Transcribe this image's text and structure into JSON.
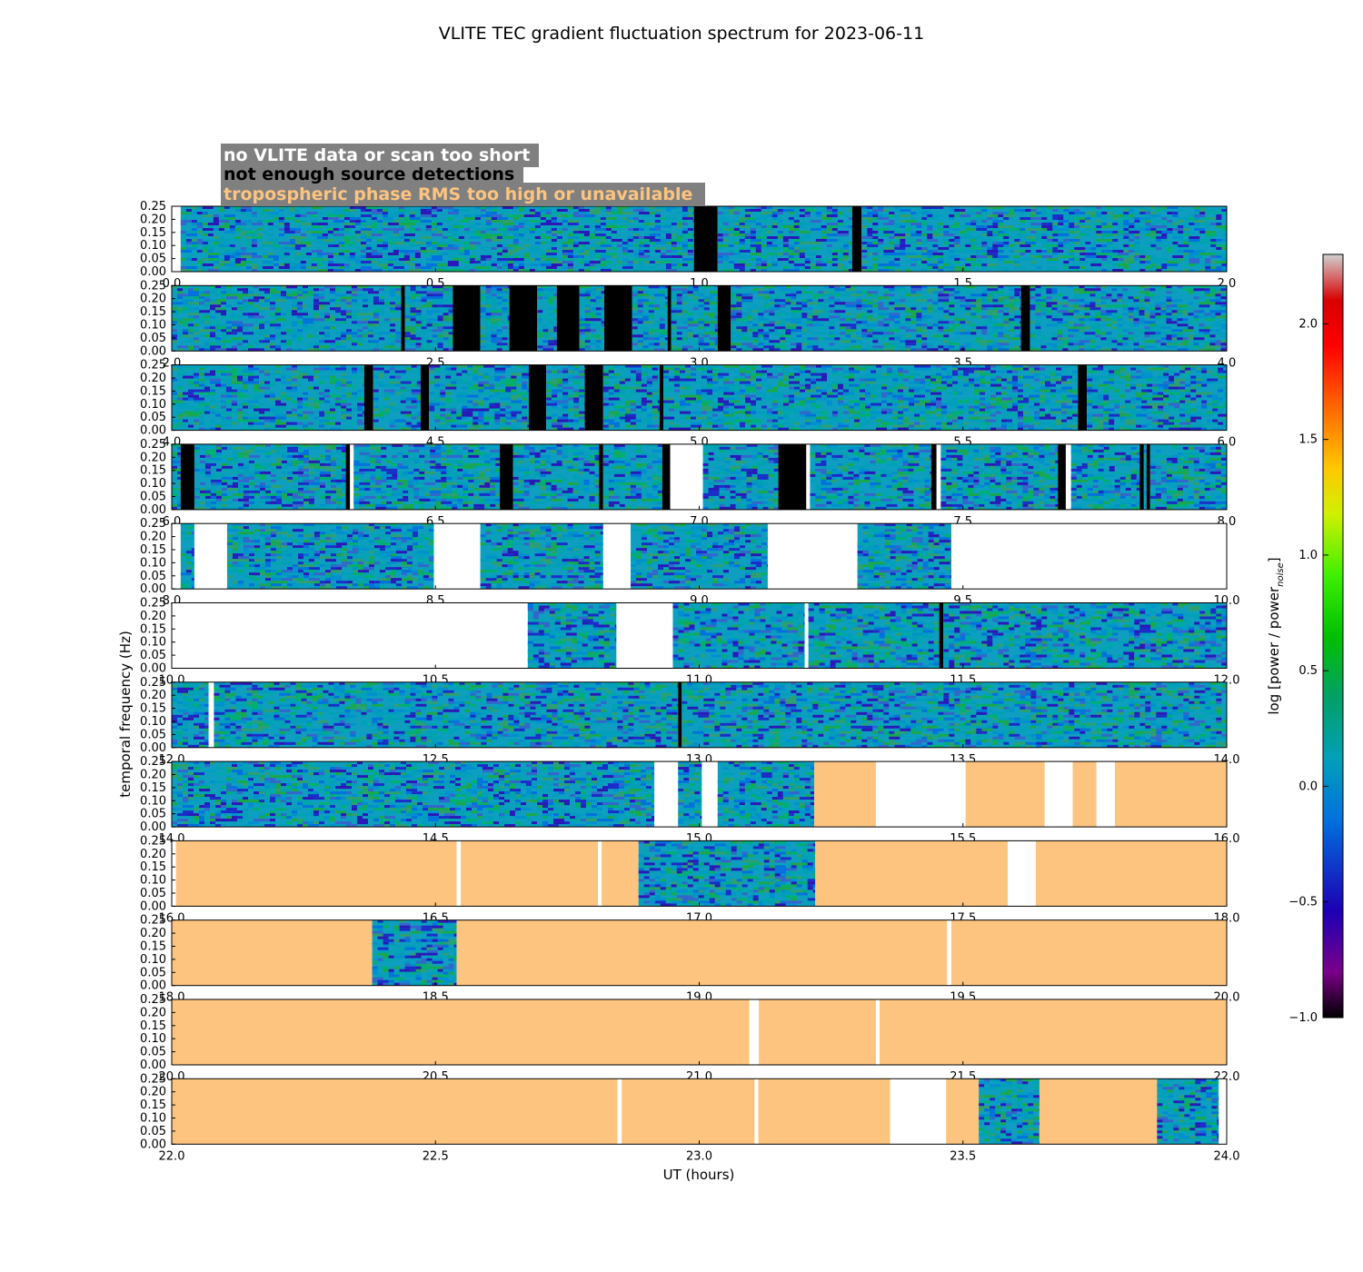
{
  "chart_data": {
    "type": "heatmap",
    "title": "VLITE TEC gradient fluctuation spectrum for 2023-06-11",
    "xlabel": "UT (hours)",
    "ylabel": "temporal frequency (Hz)",
    "ylim": [
      0,
      0.25
    ],
    "y_ticks": [
      "0.25",
      "0.20",
      "0.15",
      "0.10",
      "0.05",
      "0.00"
    ],
    "colorbar": {
      "label": "log [power / power",
      "label_sub": "noise",
      "label_close": "]",
      "range": [
        -1.0,
        2.3
      ],
      "ticks": [
        "2.0",
        "1.5",
        "1.0",
        "0.5",
        "0.0",
        "−0.5",
        "−1.0"
      ],
      "tick_values": [
        2.0,
        1.5,
        1.0,
        0.5,
        0.0,
        -0.5,
        -1.0
      ]
    },
    "legend": [
      {
        "text": "no VLITE data or scan too short",
        "color": "#ffffff"
      },
      {
        "text": "not enough source detections",
        "color": "#000000"
      },
      {
        "text": "tropospheric phase RMS too high or unavailable",
        "color": "#fdc47f"
      }
    ],
    "rows": [
      {
        "start": 0.0,
        "end": 2.0,
        "ticks": [
          "0.0",
          "0.5",
          "1.0",
          "1.5",
          "2.0"
        ],
        "segments": [
          {
            "x0": 0.0,
            "x1": 0.017,
            "t": "white"
          },
          {
            "x0": 0.017,
            "x1": 0.99,
            "t": "data"
          },
          {
            "x0": 0.99,
            "x1": 1.035,
            "t": "black"
          },
          {
            "x0": 1.035,
            "x1": 1.29,
            "t": "data"
          },
          {
            "x0": 1.29,
            "x1": 1.308,
            "t": "black"
          },
          {
            "x0": 1.308,
            "x1": 2.0,
            "t": "data"
          }
        ]
      },
      {
        "start": 2.0,
        "end": 4.0,
        "ticks": [
          "2.0",
          "2.5",
          "3.0",
          "3.5",
          "4.0"
        ],
        "segments": [
          {
            "x0": 2.0,
            "x1": 2.435,
            "t": "data"
          },
          {
            "x0": 2.435,
            "x1": 2.442,
            "t": "black"
          },
          {
            "x0": 2.442,
            "x1": 2.533,
            "t": "data"
          },
          {
            "x0": 2.533,
            "x1": 2.585,
            "t": "black"
          },
          {
            "x0": 2.585,
            "x1": 2.64,
            "t": "data"
          },
          {
            "x0": 2.64,
            "x1": 2.693,
            "t": "black"
          },
          {
            "x0": 2.693,
            "x1": 2.73,
            "t": "data"
          },
          {
            "x0": 2.73,
            "x1": 2.773,
            "t": "black"
          },
          {
            "x0": 2.773,
            "x1": 2.82,
            "t": "data"
          },
          {
            "x0": 2.82,
            "x1": 2.873,
            "t": "black"
          },
          {
            "x0": 2.873,
            "x1": 2.94,
            "t": "data"
          },
          {
            "x0": 2.94,
            "x1": 2.947,
            "t": "black"
          },
          {
            "x0": 2.947,
            "x1": 3.035,
            "t": "data"
          },
          {
            "x0": 3.035,
            "x1": 3.06,
            "t": "black"
          },
          {
            "x0": 3.06,
            "x1": 3.61,
            "t": "data"
          },
          {
            "x0": 3.61,
            "x1": 3.627,
            "t": "black"
          },
          {
            "x0": 3.627,
            "x1": 4.0,
            "t": "data"
          }
        ]
      },
      {
        "start": 4.0,
        "end": 6.0,
        "ticks": [
          "4.0",
          "4.5",
          "5.0",
          "5.5",
          "6.0"
        ],
        "segments": [
          {
            "x0": 4.0,
            "x1": 4.365,
            "t": "data"
          },
          {
            "x0": 4.365,
            "x1": 4.382,
            "t": "black"
          },
          {
            "x0": 4.382,
            "x1": 4.472,
            "t": "data"
          },
          {
            "x0": 4.472,
            "x1": 4.488,
            "t": "black"
          },
          {
            "x0": 4.488,
            "x1": 4.677,
            "t": "data"
          },
          {
            "x0": 4.677,
            "x1": 4.71,
            "t": "black"
          },
          {
            "x0": 4.71,
            "x1": 4.783,
            "t": "data"
          },
          {
            "x0": 4.783,
            "x1": 4.818,
            "t": "black"
          },
          {
            "x0": 4.818,
            "x1": 4.925,
            "t": "data"
          },
          {
            "x0": 4.925,
            "x1": 4.932,
            "t": "black"
          },
          {
            "x0": 4.932,
            "x1": 5.718,
            "t": "data"
          },
          {
            "x0": 5.718,
            "x1": 5.735,
            "t": "black"
          },
          {
            "x0": 5.735,
            "x1": 6.0,
            "t": "data"
          }
        ]
      },
      {
        "start": 6.0,
        "end": 8.0,
        "ticks": [
          "6.0",
          "6.5",
          "7.0",
          "7.5",
          "8.0"
        ],
        "segments": [
          {
            "x0": 6.0,
            "x1": 6.017,
            "t": "data"
          },
          {
            "x0": 6.017,
            "x1": 6.043,
            "t": "black"
          },
          {
            "x0": 6.043,
            "x1": 6.33,
            "t": "data"
          },
          {
            "x0": 6.33,
            "x1": 6.338,
            "t": "black"
          },
          {
            "x0": 6.338,
            "x1": 6.345,
            "t": "white"
          },
          {
            "x0": 6.345,
            "x1": 6.622,
            "t": "data"
          },
          {
            "x0": 6.622,
            "x1": 6.647,
            "t": "black"
          },
          {
            "x0": 6.647,
            "x1": 6.81,
            "t": "data"
          },
          {
            "x0": 6.81,
            "x1": 6.818,
            "t": "black"
          },
          {
            "x0": 6.818,
            "x1": 6.93,
            "t": "data"
          },
          {
            "x0": 6.93,
            "x1": 6.945,
            "t": "black"
          },
          {
            "x0": 6.945,
            "x1": 7.007,
            "t": "white"
          },
          {
            "x0": 7.007,
            "x1": 7.15,
            "t": "data"
          },
          {
            "x0": 7.15,
            "x1": 7.203,
            "t": "black"
          },
          {
            "x0": 7.203,
            "x1": 7.21,
            "t": "white"
          },
          {
            "x0": 7.21,
            "x1": 7.44,
            "t": "data"
          },
          {
            "x0": 7.44,
            "x1": 7.45,
            "t": "black"
          },
          {
            "x0": 7.45,
            "x1": 7.458,
            "t": "white"
          },
          {
            "x0": 7.458,
            "x1": 7.68,
            "t": "data"
          },
          {
            "x0": 7.68,
            "x1": 7.695,
            "t": "black"
          },
          {
            "x0": 7.695,
            "x1": 7.705,
            "t": "white"
          },
          {
            "x0": 7.705,
            "x1": 7.835,
            "t": "data"
          },
          {
            "x0": 7.835,
            "x1": 7.843,
            "t": "black"
          },
          {
            "x0": 7.843,
            "x1": 7.848,
            "t": "data"
          },
          {
            "x0": 7.848,
            "x1": 7.855,
            "t": "black"
          },
          {
            "x0": 7.855,
            "x1": 8.0,
            "t": "data"
          }
        ]
      },
      {
        "start": 8.0,
        "end": 10.0,
        "ticks": [
          "8.0",
          "8.5",
          "9.0",
          "9.5",
          "10.0"
        ],
        "segments": [
          {
            "x0": 8.0,
            "x1": 8.017,
            "t": "white"
          },
          {
            "x0": 8.017,
            "x1": 8.043,
            "t": "data"
          },
          {
            "x0": 8.043,
            "x1": 8.105,
            "t": "white"
          },
          {
            "x0": 8.105,
            "x1": 8.497,
            "t": "data"
          },
          {
            "x0": 8.497,
            "x1": 8.585,
            "t": "white"
          },
          {
            "x0": 8.585,
            "x1": 8.818,
            "t": "data"
          },
          {
            "x0": 8.818,
            "x1": 8.87,
            "t": "white"
          },
          {
            "x0": 8.87,
            "x1": 9.13,
            "t": "data"
          },
          {
            "x0": 9.13,
            "x1": 9.3,
            "t": "white"
          },
          {
            "x0": 9.3,
            "x1": 9.478,
            "t": "data"
          },
          {
            "x0": 9.478,
            "x1": 10.0,
            "t": "white"
          }
        ]
      },
      {
        "start": 10.0,
        "end": 12.0,
        "ticks": [
          "10.0",
          "10.5",
          "11.0",
          "11.5",
          "12.0"
        ],
        "segments": [
          {
            "x0": 10.0,
            "x1": 10.675,
            "t": "white"
          },
          {
            "x0": 10.675,
            "x1": 10.843,
            "t": "data"
          },
          {
            "x0": 10.843,
            "x1": 10.95,
            "t": "white"
          },
          {
            "x0": 10.95,
            "x1": 11.2,
            "t": "data"
          },
          {
            "x0": 11.2,
            "x1": 11.207,
            "t": "white"
          },
          {
            "x0": 11.207,
            "x1": 11.455,
            "t": "data"
          },
          {
            "x0": 11.455,
            "x1": 11.463,
            "t": "black"
          },
          {
            "x0": 11.463,
            "x1": 12.0,
            "t": "data"
          }
        ]
      },
      {
        "start": 12.0,
        "end": 14.0,
        "ticks": [
          "12.0",
          "12.5",
          "13.0",
          "13.5",
          "14.0"
        ],
        "segments": [
          {
            "x0": 12.0,
            "x1": 12.07,
            "t": "data"
          },
          {
            "x0": 12.07,
            "x1": 12.08,
            "t": "white"
          },
          {
            "x0": 12.08,
            "x1": 12.96,
            "t": "data"
          },
          {
            "x0": 12.96,
            "x1": 12.967,
            "t": "black"
          },
          {
            "x0": 12.967,
            "x1": 14.0,
            "t": "data"
          }
        ]
      },
      {
        "start": 14.0,
        "end": 16.0,
        "ticks": [
          "14.0",
          "14.5",
          "15.0",
          "15.5",
          "16.0"
        ],
        "segments": [
          {
            "x0": 14.0,
            "x1": 14.915,
            "t": "data"
          },
          {
            "x0": 14.915,
            "x1": 14.96,
            "t": "white"
          },
          {
            "x0": 14.96,
            "x1": 15.005,
            "t": "data"
          },
          {
            "x0": 15.005,
            "x1": 15.035,
            "t": "white"
          },
          {
            "x0": 15.035,
            "x1": 15.218,
            "t": "data"
          },
          {
            "x0": 15.218,
            "x1": 15.335,
            "t": "tropo"
          },
          {
            "x0": 15.335,
            "x1": 15.505,
            "t": "white"
          },
          {
            "x0": 15.505,
            "x1": 15.655,
            "t": "tropo"
          },
          {
            "x0": 15.655,
            "x1": 15.708,
            "t": "white"
          },
          {
            "x0": 15.708,
            "x1": 15.753,
            "t": "tropo"
          },
          {
            "x0": 15.753,
            "x1": 15.788,
            "t": "white"
          },
          {
            "x0": 15.788,
            "x1": 16.0,
            "t": "tropo"
          }
        ]
      },
      {
        "start": 16.0,
        "end": 18.0,
        "ticks": [
          "16.0",
          "16.5",
          "17.0",
          "17.5",
          "18.0"
        ],
        "segments": [
          {
            "x0": 16.0,
            "x1": 16.008,
            "t": "white"
          },
          {
            "x0": 16.008,
            "x1": 16.54,
            "t": "tropo"
          },
          {
            "x0": 16.54,
            "x1": 16.548,
            "t": "white"
          },
          {
            "x0": 16.548,
            "x1": 16.808,
            "t": "tropo"
          },
          {
            "x0": 16.808,
            "x1": 16.815,
            "t": "white"
          },
          {
            "x0": 16.815,
            "x1": 16.885,
            "t": "tropo"
          },
          {
            "x0": 16.885,
            "x1": 17.22,
            "t": "data"
          },
          {
            "x0": 17.22,
            "x1": 17.585,
            "t": "tropo"
          },
          {
            "x0": 17.585,
            "x1": 17.638,
            "t": "white"
          },
          {
            "x0": 17.638,
            "x1": 18.0,
            "t": "tropo"
          }
        ]
      },
      {
        "start": 18.0,
        "end": 20.0,
        "ticks": [
          "18.0",
          "18.5",
          "19.0",
          "19.5",
          "20.0"
        ],
        "segments": [
          {
            "x0": 18.0,
            "x1": 18.38,
            "t": "tropo"
          },
          {
            "x0": 18.38,
            "x1": 18.54,
            "t": "data"
          },
          {
            "x0": 18.54,
            "x1": 19.47,
            "t": "tropo"
          },
          {
            "x0": 19.47,
            "x1": 19.478,
            "t": "white"
          },
          {
            "x0": 19.478,
            "x1": 20.0,
            "t": "tropo"
          }
        ]
      },
      {
        "start": 20.0,
        "end": 22.0,
        "ticks": [
          "20.0",
          "20.5",
          "21.0",
          "21.5",
          "22.0"
        ],
        "segments": [
          {
            "x0": 20.0,
            "x1": 21.095,
            "t": "tropo"
          },
          {
            "x0": 21.095,
            "x1": 21.113,
            "t": "white"
          },
          {
            "x0": 21.113,
            "x1": 21.335,
            "t": "tropo"
          },
          {
            "x0": 21.335,
            "x1": 21.342,
            "t": "white"
          },
          {
            "x0": 21.342,
            "x1": 22.0,
            "t": "tropo"
          }
        ]
      },
      {
        "start": 22.0,
        "end": 24.0,
        "ticks": [
          "22.0",
          "22.5",
          "23.0",
          "23.5",
          "24.0"
        ],
        "segments": [
          {
            "x0": 22.0,
            "x1": 22.845,
            "t": "tropo"
          },
          {
            "x0": 22.845,
            "x1": 22.853,
            "t": "white"
          },
          {
            "x0": 22.853,
            "x1": 23.105,
            "t": "tropo"
          },
          {
            "x0": 23.105,
            "x1": 23.112,
            "t": "white"
          },
          {
            "x0": 23.112,
            "x1": 23.362,
            "t": "tropo"
          },
          {
            "x0": 23.362,
            "x1": 23.468,
            "t": "white"
          },
          {
            "x0": 23.468,
            "x1": 23.53,
            "t": "tropo"
          },
          {
            "x0": 23.53,
            "x1": 23.645,
            "t": "data"
          },
          {
            "x0": 23.645,
            "x1": 23.868,
            "t": "tropo"
          },
          {
            "x0": 23.868,
            "x1": 23.985,
            "t": "data"
          },
          {
            "x0": 23.985,
            "x1": 24.0,
            "t": "white"
          }
        ]
      }
    ]
  }
}
